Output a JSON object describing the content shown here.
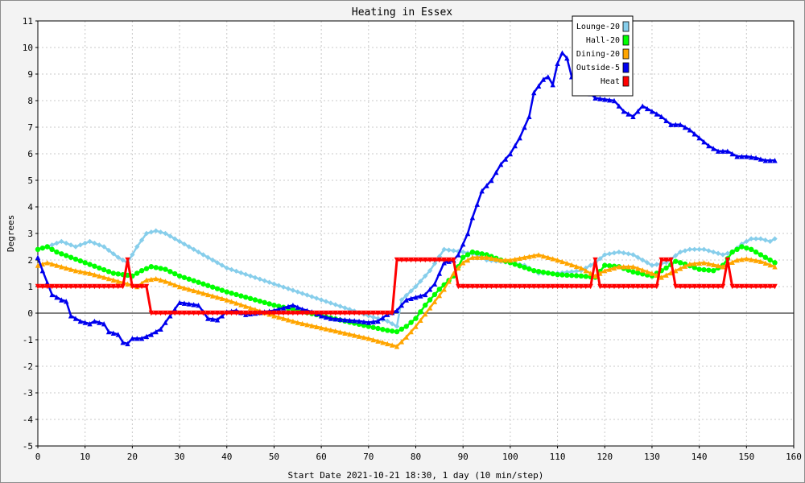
{
  "chart_data": {
    "type": "line",
    "title": "Heating in Essex",
    "xlabel": "Start Date 2021-10-21 18:30, 1 day (10 min/step)",
    "ylabel": "Degrees",
    "xlim": [
      0,
      160
    ],
    "ylim": [
      -5,
      11
    ],
    "x_ticks": [
      0,
      10,
      20,
      30,
      40,
      50,
      60,
      70,
      80,
      90,
      100,
      110,
      120,
      130,
      140,
      150,
      160
    ],
    "y_ticks": [
      -5,
      -4,
      -3,
      -2,
      -1,
      0,
      1,
      2,
      3,
      4,
      5,
      6,
      7,
      8,
      9,
      10,
      11
    ],
    "grid": true,
    "legend_position": "top-right",
    "series": [
      {
        "name": "Lounge-20",
        "color": "#87ceeb",
        "marker": "diamond",
        "points": [
          [
            0,
            2.4
          ],
          [
            2,
            2.5
          ],
          [
            5,
            2.7
          ],
          [
            8,
            2.5
          ],
          [
            11,
            2.7
          ],
          [
            14,
            2.5
          ],
          [
            17,
            2.1
          ],
          [
            19,
            1.9
          ],
          [
            21,
            2.5
          ],
          [
            23,
            3.0
          ],
          [
            25,
            3.1
          ],
          [
            27,
            3.0
          ],
          [
            30,
            2.7
          ],
          [
            35,
            2.2
          ],
          [
            40,
            1.7
          ],
          [
            45,
            1.4
          ],
          [
            50,
            1.1
          ],
          [
            55,
            0.8
          ],
          [
            60,
            0.5
          ],
          [
            65,
            0.2
          ],
          [
            70,
            -0.1
          ],
          [
            74,
            -0.3
          ],
          [
            76,
            -0.5
          ],
          [
            77,
            0.5
          ],
          [
            80,
            1.0
          ],
          [
            83,
            1.6
          ],
          [
            86,
            2.4
          ],
          [
            90,
            2.3
          ],
          [
            93,
            2.2
          ],
          [
            95,
            2.0
          ],
          [
            100,
            1.9
          ],
          [
            103,
            1.8
          ],
          [
            106,
            1.5
          ],
          [
            110,
            1.5
          ],
          [
            115,
            1.6
          ],
          [
            118,
            1.9
          ],
          [
            120,
            2.2
          ],
          [
            123,
            2.3
          ],
          [
            126,
            2.2
          ],
          [
            130,
            1.8
          ],
          [
            133,
            1.9
          ],
          [
            136,
            2.3
          ],
          [
            138,
            2.4
          ],
          [
            141,
            2.4
          ],
          [
            145,
            2.2
          ],
          [
            147,
            2.3
          ],
          [
            149,
            2.6
          ],
          [
            151,
            2.8
          ],
          [
            153,
            2.8
          ],
          [
            155,
            2.7
          ],
          [
            156,
            2.8
          ]
        ]
      },
      {
        "name": "Hall-20",
        "color": "#00ff00",
        "marker": "circle",
        "points": [
          [
            0,
            2.4
          ],
          [
            2,
            2.5
          ],
          [
            4,
            2.3
          ],
          [
            7,
            2.1
          ],
          [
            10,
            1.9
          ],
          [
            13,
            1.7
          ],
          [
            16,
            1.5
          ],
          [
            18,
            1.45
          ],
          [
            20,
            1.4
          ],
          [
            22,
            1.6
          ],
          [
            24,
            1.75
          ],
          [
            27,
            1.65
          ],
          [
            30,
            1.4
          ],
          [
            35,
            1.1
          ],
          [
            40,
            0.8
          ],
          [
            45,
            0.55
          ],
          [
            50,
            0.3
          ],
          [
            55,
            0.1
          ],
          [
            60,
            -0.1
          ],
          [
            65,
            -0.3
          ],
          [
            70,
            -0.5
          ],
          [
            74,
            -0.65
          ],
          [
            76,
            -0.7
          ],
          [
            78,
            -0.5
          ],
          [
            80,
            -0.2
          ],
          [
            82,
            0.3
          ],
          [
            85,
            0.9
          ],
          [
            88,
            1.4
          ],
          [
            90,
            2.1
          ],
          [
            92,
            2.3
          ],
          [
            95,
            2.2
          ],
          [
            98,
            2.0
          ],
          [
            100,
            1.9
          ],
          [
            105,
            1.6
          ],
          [
            110,
            1.45
          ],
          [
            115,
            1.4
          ],
          [
            118,
            1.35
          ],
          [
            120,
            1.8
          ],
          [
            123,
            1.75
          ],
          [
            126,
            1.55
          ],
          [
            130,
            1.4
          ],
          [
            133,
            1.7
          ],
          [
            135,
            1.95
          ],
          [
            137,
            1.85
          ],
          [
            140,
            1.65
          ],
          [
            143,
            1.6
          ],
          [
            145,
            1.8
          ],
          [
            147,
            2.3
          ],
          [
            149,
            2.5
          ],
          [
            151,
            2.4
          ],
          [
            153,
            2.2
          ],
          [
            156,
            1.9
          ]
        ]
      },
      {
        "name": "Dining-20",
        "color": "#ffa500",
        "marker": "triangle",
        "points": [
          [
            0,
            1.8
          ],
          [
            2,
            1.9
          ],
          [
            5,
            1.75
          ],
          [
            8,
            1.6
          ],
          [
            11,
            1.5
          ],
          [
            14,
            1.35
          ],
          [
            17,
            1.2
          ],
          [
            19,
            1.1
          ],
          [
            21,
            1.0
          ],
          [
            23,
            1.25
          ],
          [
            25,
            1.3
          ],
          [
            27,
            1.2
          ],
          [
            30,
            1.0
          ],
          [
            35,
            0.75
          ],
          [
            40,
            0.5
          ],
          [
            45,
            0.2
          ],
          [
            50,
            -0.1
          ],
          [
            55,
            -0.35
          ],
          [
            60,
            -0.55
          ],
          [
            65,
            -0.75
          ],
          [
            70,
            -0.95
          ],
          [
            74,
            -1.15
          ],
          [
            76,
            -1.25
          ],
          [
            78,
            -0.9
          ],
          [
            80,
            -0.5
          ],
          [
            83,
            0.2
          ],
          [
            86,
            0.9
          ],
          [
            88,
            1.5
          ],
          [
            90,
            1.9
          ],
          [
            92,
            2.1
          ],
          [
            95,
            2.1
          ],
          [
            98,
            2.0
          ],
          [
            100,
            2.0
          ],
          [
            103,
            2.1
          ],
          [
            106,
            2.2
          ],
          [
            110,
            2.0
          ],
          [
            115,
            1.7
          ],
          [
            118,
            1.4
          ],
          [
            120,
            1.6
          ],
          [
            123,
            1.75
          ],
          [
            126,
            1.75
          ],
          [
            130,
            1.5
          ],
          [
            132,
            1.35
          ],
          [
            135,
            1.6
          ],
          [
            138,
            1.85
          ],
          [
            141,
            1.9
          ],
          [
            145,
            1.75
          ],
          [
            148,
            2.0
          ],
          [
            150,
            2.05
          ],
          [
            153,
            1.95
          ],
          [
            156,
            1.75
          ]
        ]
      },
      {
        "name": "Outside-5",
        "color": "#0000ee",
        "marker": "triangle",
        "points": [
          [
            0,
            2.1
          ],
          [
            1,
            1.6
          ],
          [
            3,
            0.7
          ],
          [
            5,
            0.5
          ],
          [
            6,
            0.45
          ],
          [
            7,
            -0.1
          ],
          [
            9,
            -0.3
          ],
          [
            11,
            -0.4
          ],
          [
            12,
            -0.3
          ],
          [
            14,
            -0.4
          ],
          [
            15,
            -0.7
          ],
          [
            17,
            -0.8
          ],
          [
            18,
            -1.1
          ],
          [
            19,
            -1.15
          ],
          [
            20,
            -0.95
          ],
          [
            22,
            -0.95
          ],
          [
            24,
            -0.8
          ],
          [
            26,
            -0.6
          ],
          [
            28,
            -0.1
          ],
          [
            30,
            0.4
          ],
          [
            32,
            0.35
          ],
          [
            34,
            0.3
          ],
          [
            36,
            -0.2
          ],
          [
            38,
            -0.25
          ],
          [
            40,
            0.05
          ],
          [
            42,
            0.1
          ],
          [
            44,
            -0.05
          ],
          [
            46,
            0.0
          ],
          [
            48,
            0.05
          ],
          [
            50,
            0.1
          ],
          [
            52,
            0.2
          ],
          [
            54,
            0.3
          ],
          [
            56,
            0.15
          ],
          [
            58,
            0.05
          ],
          [
            60,
            -0.1
          ],
          [
            62,
            -0.2
          ],
          [
            65,
            -0.25
          ],
          [
            68,
            -0.3
          ],
          [
            70,
            -0.35
          ],
          [
            72,
            -0.3
          ],
          [
            74,
            -0.05
          ],
          [
            76,
            0.1
          ],
          [
            78,
            0.5
          ],
          [
            80,
            0.6
          ],
          [
            82,
            0.7
          ],
          [
            84,
            1.1
          ],
          [
            86,
            1.9
          ],
          [
            88,
            2.0
          ],
          [
            89,
            2.2
          ],
          [
            91,
            3.0
          ],
          [
            92,
            3.6
          ],
          [
            94,
            4.6
          ],
          [
            96,
            5.0
          ],
          [
            98,
            5.6
          ],
          [
            100,
            6.0
          ],
          [
            102,
            6.6
          ],
          [
            104,
            7.4
          ],
          [
            105,
            8.3
          ],
          [
            107,
            8.8
          ],
          [
            108,
            8.9
          ],
          [
            109,
            8.6
          ],
          [
            110,
            9.4
          ],
          [
            111,
            9.8
          ],
          [
            112,
            9.6
          ],
          [
            113,
            8.9
          ],
          [
            118,
            8.1
          ],
          [
            122,
            8.0
          ],
          [
            124,
            7.6
          ],
          [
            126,
            7.4
          ],
          [
            128,
            7.8
          ],
          [
            130,
            7.6
          ],
          [
            132,
            7.4
          ],
          [
            134,
            7.1
          ],
          [
            136,
            7.1
          ],
          [
            138,
            6.9
          ],
          [
            140,
            6.6
          ],
          [
            142,
            6.3
          ],
          [
            144,
            6.1
          ],
          [
            146,
            6.1
          ],
          [
            148,
            5.9
          ],
          [
            150,
            5.9
          ],
          [
            152,
            5.85
          ],
          [
            154,
            5.75
          ],
          [
            156,
            5.75
          ]
        ]
      },
      {
        "name": "Heat",
        "color": "#ff0000",
        "marker": "triangle-down",
        "points": [
          [
            0,
            1
          ],
          [
            18,
            1
          ],
          [
            19,
            2
          ],
          [
            20,
            1
          ],
          [
            23,
            1
          ],
          [
            24,
            0
          ],
          [
            75,
            0
          ],
          [
            76,
            2
          ],
          [
            88,
            2
          ],
          [
            89,
            1
          ],
          [
            117,
            1
          ],
          [
            118,
            2
          ],
          [
            119,
            1
          ],
          [
            131,
            1
          ],
          [
            132,
            2
          ],
          [
            134,
            2
          ],
          [
            135,
            1
          ],
          [
            145,
            1
          ],
          [
            146,
            2
          ],
          [
            147,
            1
          ],
          [
            156,
            1
          ]
        ]
      }
    ]
  }
}
